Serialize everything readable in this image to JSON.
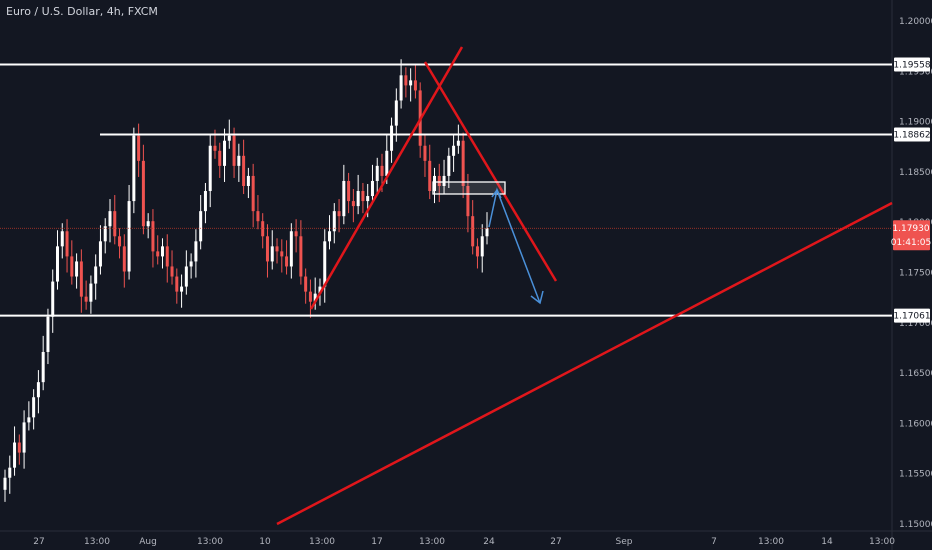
{
  "header": {
    "title": "Euro / U.S. Dollar, 4h, FXCM"
  },
  "colors": {
    "background": "#131722",
    "up": "#ffffff",
    "down": "#ef5350",
    "drawing_red": "#e0161b",
    "arrow_blue": "#4a90d9",
    "level_white": "#ffffff",
    "axis_text": "#b2b5be",
    "price_line": "#c0392b",
    "price_tag": "#ef5350"
  },
  "chart_data": {
    "type": "candlestick",
    "title": "Euro / U.S. Dollar, 4h, FXCM",
    "ylim": [
      1.15,
      1.2025
    ],
    "y_ticks": [
      "1.20000",
      "1.19500",
      "1.19000",
      "1.18500",
      "1.18000",
      "1.17500",
      "1.17000",
      "1.16500",
      "1.16000",
      "1.15500",
      "1.15000"
    ],
    "x_ticks": [
      "27",
      "13:00",
      "Aug",
      "13:00",
      "10",
      "13:00",
      "17",
      "13:00",
      "24",
      "27",
      "Sep",
      "7",
      "13:00",
      "14",
      "13:00"
    ],
    "level_labels": [
      "1.19558",
      "1.18862",
      "1.17061"
    ],
    "current_price": "1.17930",
    "countdown": "01:41:05",
    "horizontal_levels": [
      1.19558,
      1.18862,
      1.17061
    ],
    "path": [
      1.1545,
      1.1555,
      1.158,
      1.157,
      1.16,
      1.1605,
      1.1625,
      1.164,
      1.167,
      1.1705,
      1.174,
      1.1775,
      1.179,
      1.1765,
      1.1745,
      1.176,
      1.1725,
      1.172,
      1.1738,
      1.1755,
      1.178,
      1.1795,
      1.181,
      1.1785,
      1.1775,
      1.175,
      1.182,
      1.1885,
      1.186,
      1.1795,
      1.18,
      1.177,
      1.1765,
      1.1775,
      1.1755,
      1.1745,
      1.173,
      1.1735,
      1.1755,
      1.176,
      1.178,
      1.181,
      1.183,
      1.1875,
      1.187,
      1.1855,
      1.188,
      1.1885,
      1.1855,
      1.1865,
      1.1835,
      1.1845,
      1.181,
      1.18,
      1.1785,
      1.176,
      1.1775,
      1.177,
      1.1765,
      1.1755,
      1.179,
      1.1785,
      1.1745,
      1.173,
      1.172,
      1.1728,
      1.1735,
      1.178,
      1.179,
      1.181,
      1.1805,
      1.184,
      1.182,
      1.1815,
      1.183,
      1.182,
      1.1825,
      1.184,
      1.1855,
      1.1845,
      1.187,
      1.1895,
      1.192,
      1.1945,
      1.1935,
      1.194,
      1.193,
      1.1875,
      1.186,
      1.183,
      1.1845,
      1.1835,
      1.1845,
      1.1865,
      1.1875,
      1.188,
      1.1835,
      1.1805,
      1.1775,
      1.1765,
      1.1785,
      1.1793
    ]
  }
}
